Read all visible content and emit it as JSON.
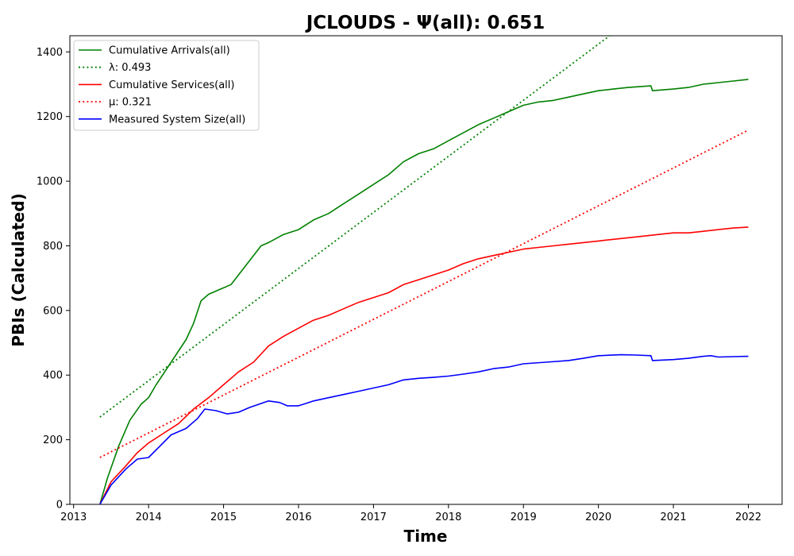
{
  "chart_data": {
    "type": "line",
    "title": "JCLOUDS -  Ψ(all): 0.651",
    "xlabel": "Time",
    "ylabel": "PBIs (Calculated)",
    "xlim": [
      2012.95,
      2022.45
    ],
    "ylim": [
      0,
      1450
    ],
    "xticks": [
      2013,
      2014,
      2015,
      2016,
      2017,
      2018,
      2019,
      2020,
      2021,
      2022
    ],
    "yticks": [
      0,
      200,
      400,
      600,
      800,
      1000,
      1200,
      1400
    ],
    "grid": false,
    "legend_position": "top-left",
    "series": [
      {
        "name": "Cumulative Arrivals(all)",
        "legend_label": "Cumulative Arrivals(all)",
        "color": "#008000",
        "style": "solid",
        "x": [
          2013.35,
          2013.45,
          2013.6,
          2013.75,
          2013.9,
          2014.0,
          2014.1,
          2014.3,
          2014.5,
          2014.6,
          2014.7,
          2014.8,
          2014.95,
          2015.1,
          2015.3,
          2015.5,
          2015.6,
          2015.8,
          2016.0,
          2016.2,
          2016.4,
          2016.6,
          2016.8,
          2017.0,
          2017.2,
          2017.4,
          2017.6,
          2017.8,
          2018.0,
          2018.2,
          2018.4,
          2018.6,
          2018.8,
          2019.0,
          2019.2,
          2019.4,
          2019.6,
          2019.8,
          2020.0,
          2020.2,
          2020.4,
          2020.7,
          2020.72,
          2021.0,
          2021.2,
          2021.4,
          2021.6,
          2021.8,
          2022.0
        ],
        "y": [
          0,
          80,
          180,
          260,
          310,
          330,
          370,
          440,
          510,
          560,
          630,
          650,
          665,
          680,
          740,
          800,
          810,
          835,
          850,
          880,
          900,
          930,
          960,
          990,
          1020,
          1060,
          1085,
          1100,
          1125,
          1150,
          1175,
          1195,
          1215,
          1235,
          1245,
          1250,
          1260,
          1270,
          1280,
          1285,
          1290,
          1295,
          1280,
          1285,
          1290,
          1300,
          1305,
          1310,
          1315
        ]
      },
      {
        "name": "λ: 0.493",
        "legend_label": "λ: 0.493",
        "color": "#008000",
        "style": "dotted",
        "x": [
          2013.35,
          2020.15
        ],
        "y": [
          270,
          1450
        ]
      },
      {
        "name": "Cumulative Services(all)",
        "legend_label": "Cumulative Services(all)",
        "color": "#ff0000",
        "style": "solid",
        "x": [
          2013.35,
          2013.5,
          2013.7,
          2013.85,
          2014.0,
          2014.2,
          2014.4,
          2014.6,
          2014.8,
          2015.0,
          2015.2,
          2015.4,
          2015.6,
          2015.8,
          2016.0,
          2016.2,
          2016.4,
          2016.6,
          2016.8,
          2017.0,
          2017.2,
          2017.4,
          2017.6,
          2017.8,
          2018.0,
          2018.2,
          2018.4,
          2018.6,
          2018.8,
          2019.0,
          2019.2,
          2019.4,
          2019.6,
          2019.8,
          2020.0,
          2020.2,
          2020.4,
          2020.6,
          2020.8,
          2021.0,
          2021.2,
          2021.4,
          2021.6,
          2021.8,
          2022.0
        ],
        "y": [
          0,
          70,
          120,
          160,
          190,
          220,
          250,
          295,
          330,
          370,
          410,
          440,
          490,
          520,
          545,
          570,
          585,
          605,
          625,
          640,
          655,
          680,
          695,
          710,
          725,
          745,
          760,
          770,
          780,
          790,
          795,
          800,
          805,
          810,
          815,
          820,
          825,
          830,
          835,
          840,
          840,
          845,
          850,
          855,
          858
        ]
      },
      {
        "name": "μ: 0.321",
        "legend_label": "μ: 0.321",
        "color": "#ff0000",
        "style": "dotted",
        "x": [
          2013.35,
          2022.0
        ],
        "y": [
          145,
          1158
        ]
      },
      {
        "name": "Measured System Size(all)",
        "legend_label": "Measured System Size(all)",
        "color": "#0000ff",
        "style": "solid",
        "x": [
          2013.35,
          2013.5,
          2013.7,
          2013.85,
          2014.0,
          2014.15,
          2014.3,
          2014.5,
          2014.65,
          2014.75,
          2014.9,
          2015.05,
          2015.2,
          2015.35,
          2015.6,
          2015.75,
          2015.85,
          2016.0,
          2016.2,
          2016.4,
          2016.6,
          2016.8,
          2017.0,
          2017.2,
          2017.4,
          2017.6,
          2017.8,
          2018.0,
          2018.2,
          2018.4,
          2018.6,
          2018.8,
          2019.0,
          2019.3,
          2019.6,
          2019.8,
          2020.0,
          2020.3,
          2020.5,
          2020.7,
          2020.72,
          2021.0,
          2021.2,
          2021.4,
          2021.5,
          2021.6,
          2021.8,
          2022.0
        ],
        "y": [
          0,
          60,
          110,
          140,
          145,
          180,
          215,
          235,
          265,
          295,
          290,
          280,
          285,
          300,
          320,
          315,
          305,
          305,
          320,
          330,
          340,
          350,
          360,
          370,
          385,
          390,
          393,
          397,
          403,
          410,
          420,
          425,
          435,
          440,
          445,
          452,
          460,
          463,
          462,
          460,
          445,
          448,
          452,
          458,
          460,
          456,
          457,
          458
        ]
      }
    ]
  }
}
